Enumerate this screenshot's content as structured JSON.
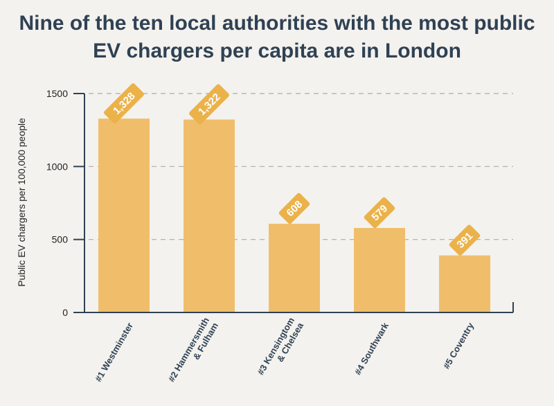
{
  "title_line1": "Nine of the ten local authorities with the most public",
  "title_line2": "EV chargers per capita are in London",
  "chart_data": {
    "type": "bar",
    "title": "Nine of the ten local authorities with the most public EV chargers per capita are in London",
    "ylabel": "Public EV chargers per 100,000 people",
    "xlabel": "",
    "ylim": [
      0,
      1500
    ],
    "yticks": [
      0,
      500,
      1000,
      1500
    ],
    "grid": true,
    "categories": [
      [
        "#1 Westminster"
      ],
      [
        "#2 Hammersmith",
        "& Fulham"
      ],
      [
        "#3 Kensingtom",
        "& Chelsea"
      ],
      [
        "#4 Southwark"
      ],
      [
        "#5 Coventry"
      ]
    ],
    "values": [
      1328,
      1322,
      608,
      579,
      391
    ],
    "data_labels": [
      "1,328",
      "1,322",
      "608",
      "579",
      "391"
    ],
    "bar_color": "#f0be6a",
    "label_tag_color": "#ebb24a",
    "axis_color": "#2f4154"
  }
}
